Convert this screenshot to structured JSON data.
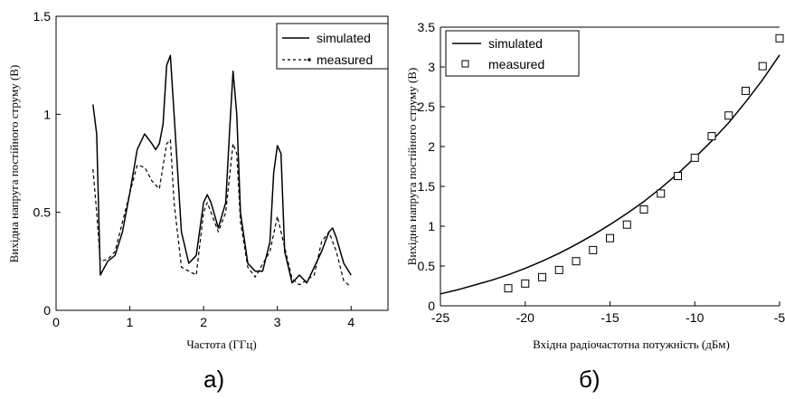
{
  "chart_data": [
    {
      "type": "line",
      "panel_label": "а)",
      "xlabel": "Частота (ГГц)",
      "ylabel": "Вихідна напруга постійного струму (В)",
      "xlim": [
        0,
        4.5
      ],
      "ylim": [
        0,
        1.5
      ],
      "x_ticks": [
        "0",
        "1",
        "2",
        "3",
        "4"
      ],
      "y_ticks": [
        "0",
        "0.5",
        "1",
        "1.5"
      ],
      "legend_position": "top-right",
      "series": [
        {
          "name": "simulated",
          "style": "solid",
          "points": [
            [
              0.5,
              1.05
            ],
            [
              0.55,
              0.9
            ],
            [
              0.6,
              0.18
            ],
            [
              0.7,
              0.25
            ],
            [
              0.8,
              0.28
            ],
            [
              0.9,
              0.4
            ],
            [
              1.0,
              0.6
            ],
            [
              1.1,
              0.82
            ],
            [
              1.2,
              0.9
            ],
            [
              1.3,
              0.85
            ],
            [
              1.35,
              0.82
            ],
            [
              1.4,
              0.85
            ],
            [
              1.45,
              0.95
            ],
            [
              1.5,
              1.25
            ],
            [
              1.55,
              1.3
            ],
            [
              1.6,
              1.0
            ],
            [
              1.7,
              0.4
            ],
            [
              1.8,
              0.24
            ],
            [
              1.9,
              0.28
            ],
            [
              2.0,
              0.55
            ],
            [
              2.05,
              0.59
            ],
            [
              2.1,
              0.55
            ],
            [
              2.2,
              0.42
            ],
            [
              2.3,
              0.55
            ],
            [
              2.35,
              0.9
            ],
            [
              2.4,
              1.22
            ],
            [
              2.45,
              1.0
            ],
            [
              2.5,
              0.5
            ],
            [
              2.6,
              0.24
            ],
            [
              2.7,
              0.2
            ],
            [
              2.8,
              0.2
            ],
            [
              2.9,
              0.35
            ],
            [
              2.95,
              0.7
            ],
            [
              3.0,
              0.84
            ],
            [
              3.05,
              0.8
            ],
            [
              3.1,
              0.3
            ],
            [
              3.2,
              0.14
            ],
            [
              3.3,
              0.18
            ],
            [
              3.4,
              0.14
            ],
            [
              3.6,
              0.3
            ],
            [
              3.7,
              0.4
            ],
            [
              3.75,
              0.42
            ],
            [
              3.8,
              0.37
            ],
            [
              3.9,
              0.24
            ],
            [
              4.0,
              0.18
            ]
          ]
        },
        {
          "name": "measured",
          "style": "dashed",
          "points": [
            [
              0.5,
              0.72
            ],
            [
              0.55,
              0.5
            ],
            [
              0.6,
              0.25
            ],
            [
              0.7,
              0.26
            ],
            [
              0.8,
              0.3
            ],
            [
              0.9,
              0.45
            ],
            [
              1.0,
              0.6
            ],
            [
              1.1,
              0.74
            ],
            [
              1.2,
              0.73
            ],
            [
              1.3,
              0.66
            ],
            [
              1.4,
              0.62
            ],
            [
              1.5,
              0.85
            ],
            [
              1.55,
              0.87
            ],
            [
              1.6,
              0.55
            ],
            [
              1.7,
              0.22
            ],
            [
              1.9,
              0.18
            ],
            [
              2.0,
              0.5
            ],
            [
              2.05,
              0.55
            ],
            [
              2.1,
              0.5
            ],
            [
              2.2,
              0.4
            ],
            [
              2.3,
              0.5
            ],
            [
              2.4,
              0.85
            ],
            [
              2.45,
              0.8
            ],
            [
              2.5,
              0.45
            ],
            [
              2.6,
              0.22
            ],
            [
              2.7,
              0.17
            ],
            [
              2.9,
              0.3
            ],
            [
              3.0,
              0.48
            ],
            [
              3.1,
              0.32
            ],
            [
              3.2,
              0.16
            ],
            [
              3.3,
              0.13
            ],
            [
              3.5,
              0.18
            ],
            [
              3.6,
              0.35
            ],
            [
              3.7,
              0.4
            ],
            [
              3.8,
              0.3
            ],
            [
              3.9,
              0.15
            ],
            [
              4.0,
              0.12
            ]
          ]
        }
      ]
    },
    {
      "type": "line",
      "panel_label": "б)",
      "xlabel": "Вхідна радіочастотна потужність (дБм)",
      "ylabel": "Вихідна напруга постійного струму (В)",
      "xlim": [
        -25,
        -5
      ],
      "ylim": [
        0,
        3.5
      ],
      "x_ticks": [
        "-25",
        "-20",
        "-15",
        "-10",
        "-5"
      ],
      "y_ticks": [
        "0",
        "0.5",
        "1",
        "1.5",
        "2",
        "2.5",
        "3",
        "3.5"
      ],
      "legend_position": "top-left",
      "series": [
        {
          "name": "simulated",
          "style": "solid",
          "points": [
            [
              -25,
              0.15
            ],
            [
              -24,
              0.2
            ],
            [
              -23,
              0.26
            ],
            [
              -22,
              0.32
            ],
            [
              -21,
              0.39
            ],
            [
              -20,
              0.47
            ],
            [
              -19,
              0.56
            ],
            [
              -18,
              0.66
            ],
            [
              -17,
              0.77
            ],
            [
              -16,
              0.89
            ],
            [
              -15,
              1.02
            ],
            [
              -14,
              1.16
            ],
            [
              -13,
              1.31
            ],
            [
              -12,
              1.48
            ],
            [
              -11,
              1.66
            ],
            [
              -10,
              1.86
            ],
            [
              -9,
              2.07
            ],
            [
              -8,
              2.3
            ],
            [
              -7,
              2.56
            ],
            [
              -6,
              2.84
            ],
            [
              -5,
              3.15
            ]
          ]
        },
        {
          "name": "measured",
          "style": "markers",
          "points": [
            [
              -21,
              0.22
            ],
            [
              -20,
              0.28
            ],
            [
              -19,
              0.36
            ],
            [
              -18,
              0.45
            ],
            [
              -17,
              0.56
            ],
            [
              -16,
              0.7
            ],
            [
              -15,
              0.85
            ],
            [
              -14,
              1.02
            ],
            [
              -13,
              1.21
            ],
            [
              -12,
              1.41
            ],
            [
              -11,
              1.63
            ],
            [
              -10,
              1.86
            ],
            [
              -9,
              2.13
            ],
            [
              -8,
              2.39
            ],
            [
              -7,
              2.7
            ],
            [
              -6,
              3.01
            ],
            [
              -5,
              3.36
            ]
          ]
        }
      ]
    }
  ]
}
